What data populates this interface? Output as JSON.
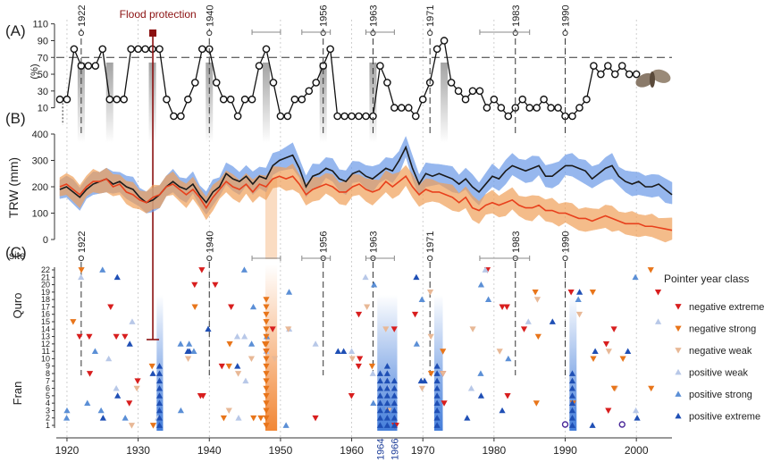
{
  "chart_data": [
    {
      "panel_label": "(A)",
      "type": "line",
      "ylabel": "(%)",
      "yticks": [
        "10",
        "30",
        "50",
        "70",
        "90",
        "110"
      ],
      "ylim": [
        0,
        115
      ],
      "threshold": 70,
      "annotation": "Flood protection",
      "annotation_year": 1932,
      "years": [
        1919,
        1920,
        1921,
        1922,
        1923,
        1924,
        1925,
        1926,
        1927,
        1928,
        1929,
        1930,
        1931,
        1932,
        1933,
        1934,
        1935,
        1936,
        1937,
        1938,
        1939,
        1940,
        1941,
        1942,
        1943,
        1944,
        1945,
        1946,
        1947,
        1948,
        1949,
        1950,
        1951,
        1952,
        1953,
        1954,
        1955,
        1956,
        1957,
        1958,
        1959,
        1960,
        1961,
        1962,
        1963,
        1964,
        1965,
        1966,
        1967,
        1968,
        1969,
        1970,
        1971,
        1972,
        1973,
        1974,
        1975,
        1976,
        1977,
        1978,
        1979,
        1980,
        1981,
        1982,
        1983,
        1984,
        1985,
        1986,
        1987,
        1988,
        1989,
        1990,
        1991,
        1992,
        1993,
        1994,
        1995,
        1996,
        1997,
        1998,
        1999,
        2000
      ],
      "values": [
        20,
        20,
        80,
        60,
        60,
        60,
        80,
        20,
        20,
        20,
        80,
        80,
        80,
        80,
        80,
        20,
        0,
        0,
        20,
        40,
        80,
        80,
        40,
        20,
        20,
        0,
        20,
        20,
        60,
        80,
        40,
        0,
        0,
        20,
        20,
        30,
        40,
        60,
        80,
        0,
        0,
        0,
        0,
        0,
        0,
        60,
        40,
        10,
        10,
        10,
        0,
        20,
        40,
        80,
        90,
        40,
        30,
        20,
        30,
        30,
        10,
        20,
        10,
        0,
        10,
        20,
        10,
        10,
        20,
        10,
        10,
        0,
        0,
        10,
        20,
        60,
        50,
        60,
        50,
        60,
        50,
        50
      ]
    },
    {
      "panel_label": "(B)",
      "type": "line",
      "ylabel": "TRW (mm)",
      "yticks": [
        "0",
        "100",
        "200",
        "300",
        "400"
      ],
      "ylim": [
        0,
        400
      ],
      "series": [
        {
          "name": "Quro",
          "color": "#1a1a1a",
          "band_color": "#6b9ae8",
          "values": [
            190,
            200,
            180,
            160,
            190,
            210,
            220,
            230,
            210,
            220,
            200,
            190,
            160,
            140,
            150,
            170,
            200,
            220,
            200,
            190,
            210,
            170,
            140,
            180,
            200,
            250,
            230,
            220,
            240,
            210,
            240,
            230,
            280,
            300,
            310,
            320,
            270,
            200,
            240,
            250,
            270,
            260,
            230,
            220,
            250,
            260,
            240,
            230,
            250,
            270,
            260,
            300,
            350,
            270,
            210,
            250,
            240,
            250,
            240,
            230,
            210,
            230,
            200,
            180,
            210,
            240,
            230,
            260,
            280,
            270,
            260,
            270,
            280,
            240,
            240,
            260,
            280,
            280,
            270,
            260,
            230,
            250,
            270,
            280,
            240,
            220,
            210,
            220,
            200,
            200,
            210,
            190,
            170
          ]
        },
        {
          "name": "Fran",
          "color": "#e8401c",
          "band_color": "#f0a05a",
          "values": [
            200,
            210,
            190,
            170,
            200,
            220,
            220,
            230,
            200,
            210,
            180,
            170,
            150,
            140,
            160,
            170,
            200,
            210,
            190,
            170,
            190,
            160,
            120,
            160,
            190,
            220,
            200,
            190,
            210,
            180,
            210,
            200,
            230,
            240,
            230,
            240,
            210,
            170,
            190,
            200,
            210,
            200,
            180,
            180,
            200,
            210,
            190,
            180,
            190,
            220,
            200,
            220,
            240,
            200,
            170,
            190,
            180,
            180,
            170,
            160,
            140,
            160,
            120,
            110,
            130,
            140,
            130,
            140,
            150,
            130,
            120,
            120,
            130,
            110,
            110,
            100,
            100,
            90,
            80,
            80,
            70,
            80,
            90,
            80,
            70,
            60,
            60,
            60,
            50,
            50,
            45,
            40,
            35
          ]
        }
      ],
      "years_start": 1919
    },
    {
      "panel_label": "(C)",
      "type": "scatter",
      "row_label": "site",
      "group_labels": [
        "Quro",
        "Fran"
      ],
      "site_ticks": [
        "1",
        "2",
        "3",
        "4",
        "5",
        "6",
        "7",
        "8",
        "9",
        "10",
        "11",
        "12",
        "13",
        "14",
        "15",
        "16",
        "17",
        "18",
        "19",
        "20",
        "21",
        "22"
      ],
      "legend_title": "Pointer year class",
      "legend": [
        {
          "name": "negative extreme",
          "color": "#d81e1e",
          "shape": "down"
        },
        {
          "name": "negative strong",
          "color": "#e8751a",
          "shape": "down"
        },
        {
          "name": "negative weak",
          "color": "#e8b896",
          "shape": "down"
        },
        {
          "name": "positive weak",
          "color": "#b8c8e8",
          "shape": "up"
        },
        {
          "name": "positive strong",
          "color": "#5b8fd6",
          "shape": "up"
        },
        {
          "name": "positive extreme",
          "color": "#1f4fb5",
          "shape": "up"
        }
      ],
      "band_years": [
        "1964",
        "1966"
      ]
    }
  ],
  "x_axis": {
    "ticks": [
      "1920",
      "1930",
      "1940",
      "1950",
      "1960",
      "1970",
      "1980",
      "1990",
      "2000"
    ],
    "xlim": [
      1918.5,
      2005
    ]
  },
  "marker_years": [
    "1922",
    "1940",
    "1956",
    "1963",
    "1971",
    "1983",
    "1990"
  ]
}
